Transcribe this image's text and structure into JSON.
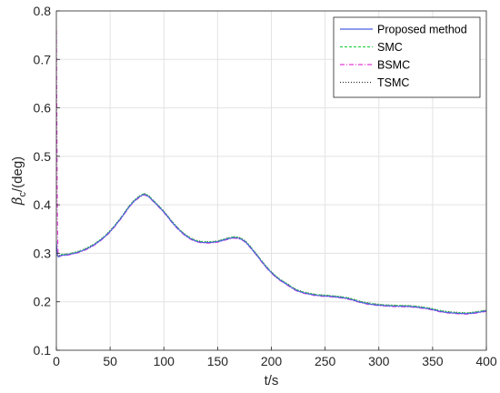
{
  "chart_data": {
    "type": "line",
    "xlabel": "t/s",
    "ylabel_main": "β",
    "ylabel_sub": "c",
    "ylabel_rest": "/(deg)",
    "xlim": [
      0,
      400
    ],
    "ylim": [
      0.1,
      0.8
    ],
    "xticks": [
      0,
      50,
      100,
      150,
      200,
      250,
      300,
      350,
      400
    ],
    "yticks": [
      0.1,
      0.2,
      0.3,
      0.4,
      0.5,
      0.6,
      0.7,
      0.8
    ],
    "grid": true,
    "legend_position": "top-right",
    "base_curve": [
      [
        0,
        0.293
      ],
      [
        5,
        0.296
      ],
      [
        10,
        0.297
      ],
      [
        20,
        0.302
      ],
      [
        30,
        0.311
      ],
      [
        40,
        0.325
      ],
      [
        50,
        0.345
      ],
      [
        60,
        0.372
      ],
      [
        70,
        0.402
      ],
      [
        80,
        0.42
      ],
      [
        85,
        0.418
      ],
      [
        90,
        0.408
      ],
      [
        100,
        0.385
      ],
      [
        110,
        0.358
      ],
      [
        120,
        0.337
      ],
      [
        130,
        0.325
      ],
      [
        140,
        0.322
      ],
      [
        150,
        0.324
      ],
      [
        160,
        0.33
      ],
      [
        167,
        0.332
      ],
      [
        175,
        0.325
      ],
      [
        185,
        0.3
      ],
      [
        195,
        0.272
      ],
      [
        205,
        0.25
      ],
      [
        215,
        0.235
      ],
      [
        225,
        0.222
      ],
      [
        240,
        0.214
      ],
      [
        255,
        0.211
      ],
      [
        270,
        0.207
      ],
      [
        285,
        0.198
      ],
      [
        300,
        0.193
      ],
      [
        315,
        0.191
      ],
      [
        330,
        0.19
      ],
      [
        345,
        0.186
      ],
      [
        360,
        0.179
      ],
      [
        375,
        0.176
      ],
      [
        385,
        0.176
      ],
      [
        400,
        0.181
      ]
    ],
    "series": [
      {
        "name": "Proposed method",
        "color": "#4a5de0",
        "dash": "none",
        "offset": 0.0,
        "initial": [
          [
            0,
            0.325
          ],
          [
            0.8,
            0.3
          ],
          [
            2,
            0.293
          ]
        ]
      },
      {
        "name": "SMC",
        "color": "#2ed14a",
        "dash": "3,2",
        "offset": 0.0015,
        "initial": [
          [
            0,
            0.305
          ],
          [
            0.8,
            0.297
          ],
          [
            2,
            0.293
          ]
        ]
      },
      {
        "name": "BSMC",
        "color": "#e23ad8",
        "dash": "5,2,1,2",
        "offset": -0.001,
        "initial": [
          [
            0,
            0.76
          ],
          [
            0.5,
            0.56
          ],
          [
            1.0,
            0.38
          ],
          [
            1.6,
            0.3
          ],
          [
            2,
            0.293
          ]
        ]
      },
      {
        "name": "TSMC",
        "color": "#333333",
        "dash": "1,2",
        "offset": 0.002,
        "initial": [
          [
            0,
            0.302
          ],
          [
            1,
            0.296
          ],
          [
            2,
            0.294
          ]
        ]
      }
    ]
  }
}
